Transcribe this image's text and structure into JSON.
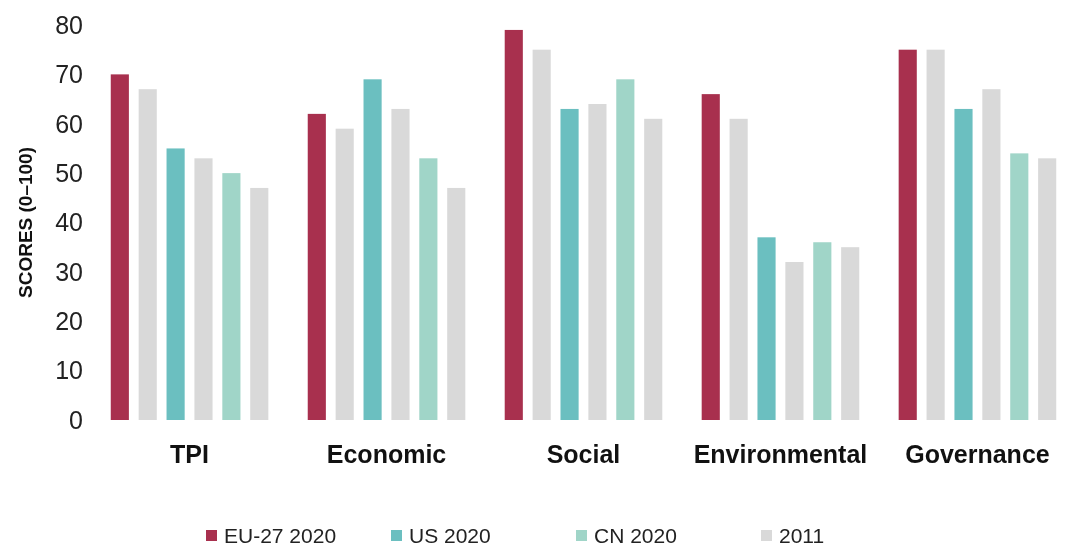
{
  "chart_data": {
    "type": "bar",
    "ylabel": "SCORES (0–100)",
    "categories": [
      "TPI",
      "Economic",
      "Social",
      "Environmental",
      "Governance"
    ],
    "series": [
      {
        "name": "EU-27 2020",
        "color": "#a8304e",
        "values": [
          70,
          62,
          79,
          66,
          75
        ]
      },
      {
        "color": "#d9d9d9",
        "values": [
          67,
          59,
          75,
          61,
          75
        ]
      },
      {
        "name": "US 2020",
        "color": "#6bbfc0",
        "values": [
          55,
          69,
          63,
          37,
          63
        ]
      },
      {
        "color": "#d9d9d9",
        "values": [
          53,
          63,
          64,
          32,
          67
        ]
      },
      {
        "name": "CN 2020",
        "color": "#a0d5c8",
        "values": [
          50,
          53,
          69,
          36,
          54
        ]
      },
      {
        "name": "2011",
        "color": "#d9d9d9",
        "values": [
          47,
          47,
          61,
          35,
          53
        ]
      }
    ],
    "ylim": [
      0,
      80
    ],
    "yticks": [
      0,
      10,
      20,
      30,
      40,
      50,
      60,
      70,
      80
    ],
    "grid": false,
    "legend": "bottom"
  }
}
